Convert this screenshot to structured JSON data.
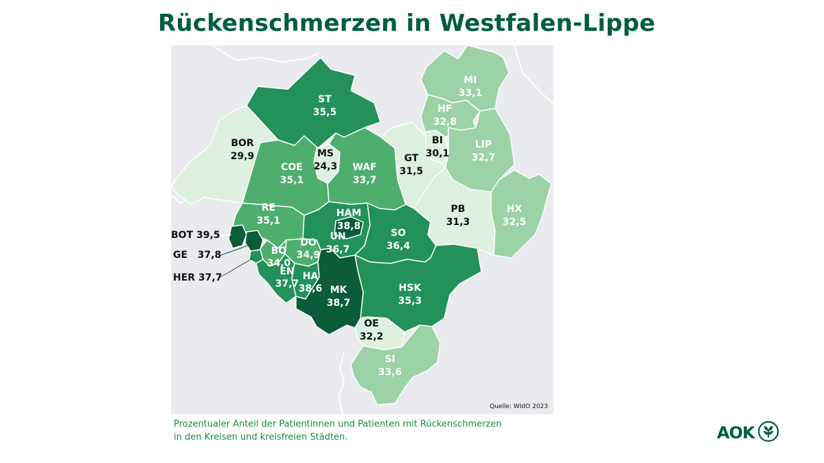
{
  "title": "Rückenschmerzen in Westfalen-Lippe",
  "source": "Quelle: WIdO 2023",
  "caption_line1": "Prozentualer Anteil der Patientinnen und Patienten mit Rückenschmerzen",
  "caption_line2": "in den Kreisen und kreisfreien Städten.",
  "logo_text": "AOK",
  "logo_icon": "aok-tree-icon",
  "colors": {
    "title": "#005e3f",
    "caption": "#1a8a3c",
    "very_high": "#0b5c38",
    "high": "#23915a",
    "medium": "#4eae6e",
    "low": "#9bd3a6",
    "very_low": "#def0df",
    "map_background": "#eaebee",
    "border": "#ffffff"
  },
  "regions": [
    {
      "code": "ST",
      "value": "35,5"
    },
    {
      "code": "BOR",
      "value": "29,9"
    },
    {
      "code": "MS",
      "value": "24,3"
    },
    {
      "code": "COE",
      "value": "35,1"
    },
    {
      "code": "WAF",
      "value": "33,7"
    },
    {
      "code": "MI",
      "value": "33,1"
    },
    {
      "code": "HF",
      "value": "32,8"
    },
    {
      "code": "BI",
      "value": "30,1"
    },
    {
      "code": "GT",
      "value": "31,5"
    },
    {
      "code": "LIP",
      "value": "32,7"
    },
    {
      "code": "RE",
      "value": "35,1"
    },
    {
      "code": "HAM",
      "value": "38,8"
    },
    {
      "code": "UN",
      "value": "36,7"
    },
    {
      "code": "SO",
      "value": "36,4"
    },
    {
      "code": "PB",
      "value": "31,3"
    },
    {
      "code": "HX",
      "value": "32,5"
    },
    {
      "code": "DO",
      "value": "34,9"
    },
    {
      "code": "BO",
      "value": "34,0"
    },
    {
      "code": "EN",
      "value": "37,7"
    },
    {
      "code": "HA",
      "value": "38,6"
    },
    {
      "code": "MK",
      "value": "38,7"
    },
    {
      "code": "HSK",
      "value": "35,3"
    },
    {
      "code": "OE",
      "value": "32,2"
    },
    {
      "code": "SI",
      "value": "33,6"
    }
  ],
  "external_labels": [
    {
      "code": "BOT",
      "value": "39,5",
      "text": "BOT 39,5"
    },
    {
      "code": "GE",
      "value": "37,8",
      "text": "GE   37,8"
    },
    {
      "code": "HER",
      "value": "37,7",
      "text": "HER 37,7"
    }
  ]
}
